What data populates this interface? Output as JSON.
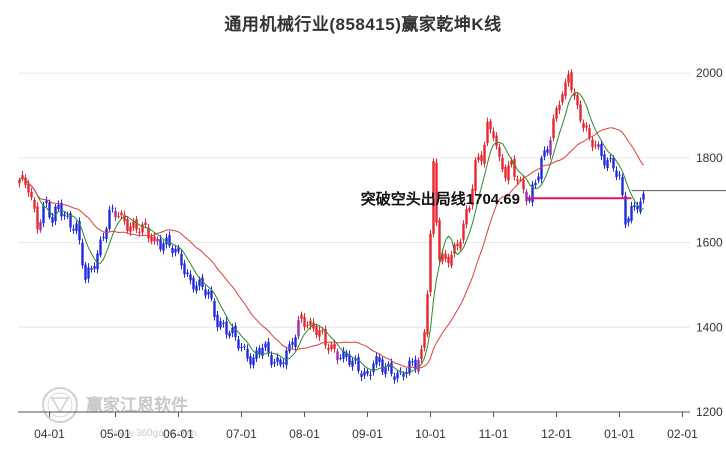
{
  "chart_data": {
    "type": "candlestick",
    "title": "通用机械行业(858415)赢家乾坤K线",
    "ylim": [
      1200,
      2050
    ],
    "yticks": [
      1200,
      1400,
      1600,
      1800,
      2000
    ],
    "x_tick_labels": [
      "04-01",
      "05-01",
      "06-01",
      "07-01",
      "08-01",
      "09-01",
      "10-01",
      "11-01",
      "12-01",
      "01-01",
      "02-01"
    ],
    "x_tick_index": [
      10,
      32,
      53,
      74,
      95,
      116,
      137,
      158,
      179,
      200,
      221
    ],
    "total_slots": 228,
    "up_color": "#e8262d",
    "down_color": "#1f2be0",
    "mid_color": "#9b2fae",
    "ma_short_color": "#2a8a2a",
    "ma_long_color": "#e03c3c",
    "annotation": {
      "text": "突破空头出局线1704.69",
      "value": 1704.69,
      "line_color": "#e0106e"
    },
    "anchors": [
      [
        0,
        1740
      ],
      [
        3,
        1730
      ],
      [
        6,
        1650
      ],
      [
        9,
        1690
      ],
      [
        11,
        1640
      ],
      [
        13,
        1690
      ],
      [
        16,
        1660
      ],
      [
        19,
        1630
      ],
      [
        22,
        1510
      ],
      [
        25,
        1560
      ],
      [
        28,
        1620
      ],
      [
        30,
        1660
      ],
      [
        33,
        1668
      ],
      [
        36,
        1650
      ],
      [
        39,
        1630
      ],
      [
        42,
        1625
      ],
      [
        45,
        1610
      ],
      [
        48,
        1600
      ],
      [
        51,
        1580
      ],
      [
        54,
        1560
      ],
      [
        57,
        1510
      ],
      [
        60,
        1490
      ],
      [
        63,
        1480
      ],
      [
        66,
        1420
      ],
      [
        69,
        1390
      ],
      [
        72,
        1370
      ],
      [
        75,
        1350
      ],
      [
        78,
        1320
      ],
      [
        81,
        1350
      ],
      [
        84,
        1330
      ],
      [
        87,
        1320
      ],
      [
        90,
        1340
      ],
      [
        92,
        1380
      ],
      [
        94,
        1430
      ],
      [
        96,
        1415
      ],
      [
        99,
        1390
      ],
      [
        102,
        1360
      ],
      [
        105,
        1350
      ],
      [
        108,
        1330
      ],
      [
        111,
        1310
      ],
      [
        114,
        1300
      ],
      [
        116,
        1290
      ],
      [
        118,
        1320
      ],
      [
        121,
        1300
      ],
      [
        124,
        1300
      ],
      [
        127,
        1290
      ],
      [
        130,
        1300
      ],
      [
        132,
        1310
      ],
      [
        134,
        1340
      ],
      [
        135,
        1400
      ],
      [
        136,
        1500
      ],
      [
        137,
        1620
      ],
      [
        138,
        1780
      ],
      [
        139,
        1650
      ],
      [
        140,
        1560
      ],
      [
        142,
        1550
      ],
      [
        144,
        1580
      ],
      [
        146,
        1600
      ],
      [
        148,
        1640
      ],
      [
        150,
        1680
      ],
      [
        152,
        1780
      ],
      [
        154,
        1810
      ],
      [
        156,
        1880
      ],
      [
        158,
        1860
      ],
      [
        160,
        1780
      ],
      [
        162,
        1760
      ],
      [
        164,
        1790
      ],
      [
        166,
        1760
      ],
      [
        168,
        1720
      ],
      [
        170,
        1690
      ],
      [
        172,
        1740
      ],
      [
        174,
        1800
      ],
      [
        176,
        1830
      ],
      [
        178,
        1880
      ],
      [
        180,
        1930
      ],
      [
        182,
        1960
      ],
      [
        183,
        2000
      ],
      [
        184,
        1980
      ],
      [
        186,
        1920
      ],
      [
        188,
        1880
      ],
      [
        190,
        1830
      ],
      [
        192,
        1830
      ],
      [
        194,
        1810
      ],
      [
        196,
        1800
      ],
      [
        198,
        1780
      ],
      [
        200,
        1740
      ],
      [
        202,
        1650
      ],
      [
        204,
        1680
      ],
      [
        206,
        1700
      ],
      [
        208,
        1700
      ]
    ]
  },
  "watermark": {
    "text": "赢家江恩软件",
    "url": "www.360gann.com",
    "logo": "seal-logo-icon"
  }
}
